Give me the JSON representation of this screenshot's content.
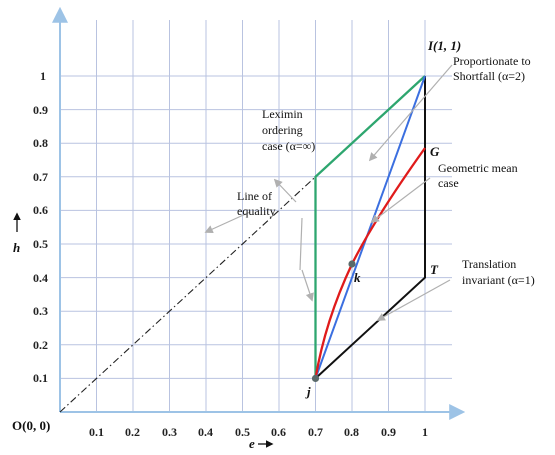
{
  "axes": {
    "x_label": "e",
    "y_label": "h",
    "x_ticks": [
      "0.1",
      "0.2",
      "0.3",
      "0.4",
      "0.5",
      "0.6",
      "0.7",
      "0.8",
      "0.9",
      "1"
    ],
    "y_ticks": [
      "0.1",
      "0.2",
      "0.3",
      "0.4",
      "0.5",
      "0.6",
      "0.7",
      "0.8",
      "0.9",
      "1"
    ],
    "xlim": [
      0,
      1.1
    ],
    "ylim": [
      0,
      1.1
    ]
  },
  "points": {
    "origin": "O(0, 0)",
    "I": "I(1, 1)",
    "G": "G",
    "T": "T",
    "k": "k",
    "j": "j"
  },
  "annotations": {
    "proportionate_1": "Proportionate to",
    "proportionate_2": "Shortfall (α=2)",
    "leximin_1": "Leximin",
    "leximin_2": "ordering",
    "leximin_3": "case (α=∞)",
    "geo_1": "Geometric mean",
    "geo_2": "case",
    "equality_1": "Line of",
    "equality_2": "equality",
    "translation_1": "Translation",
    "translation_2": "invariant (α=1)"
  },
  "colors": {
    "grid": "#b9c3e0",
    "axis": "#9dc3e6",
    "leximin": "#2ea66f",
    "proportionate": "#3b6fe0",
    "geometric": "#e01b1b",
    "translation": "#111111",
    "pointer": "#b0b0b0",
    "marker": "#5a6a6a"
  }
}
